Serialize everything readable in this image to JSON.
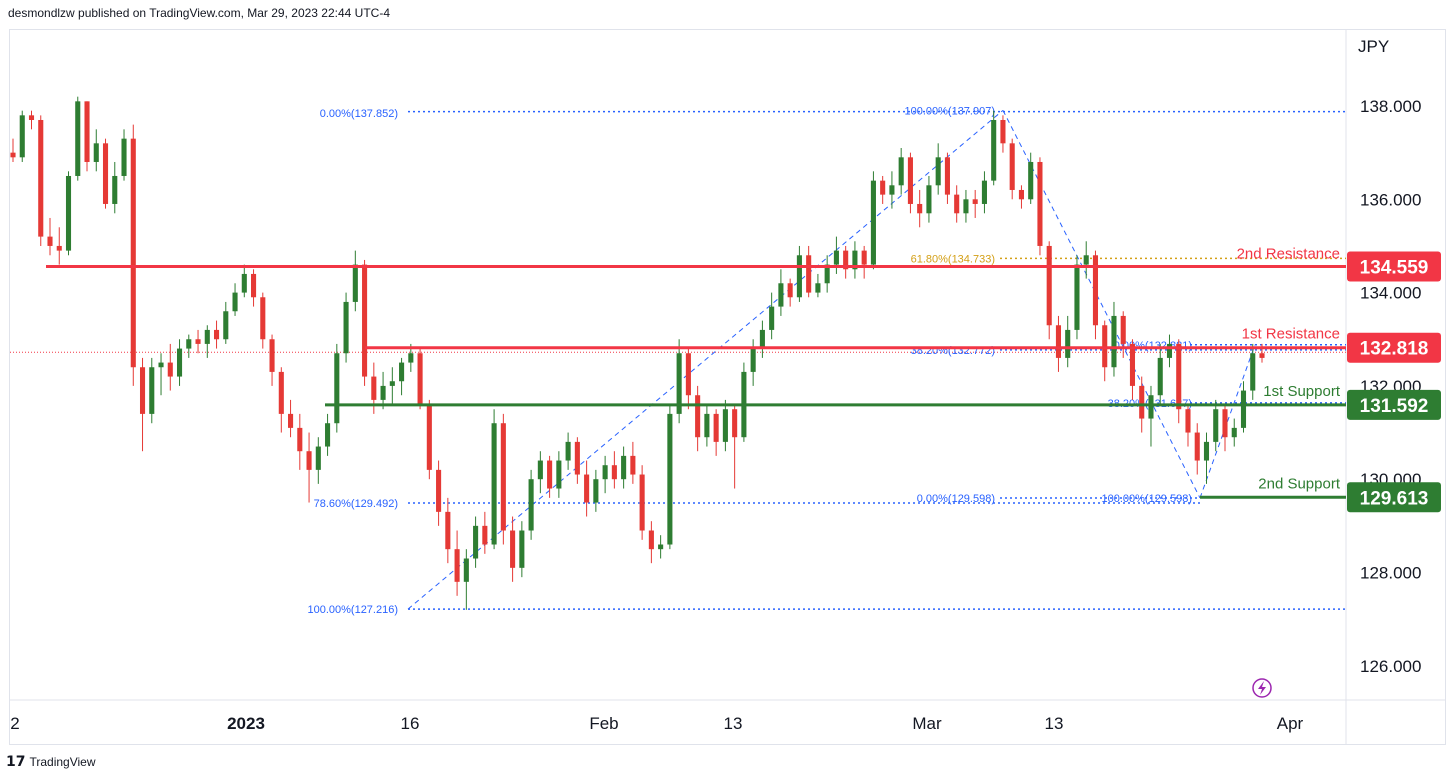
{
  "header": {
    "text": "desmondlzw published on TradingView.com, Mar 29, 2023 22:44 UTC-4"
  },
  "footer": {
    "brand": "TradingView"
  },
  "chart_data": {
    "type": "candlestick",
    "currency": "JPY",
    "price_ticks": [
      "138.000",
      "136.000",
      "134.000",
      "132.000",
      "130.000",
      "128.000",
      "126.000"
    ],
    "date_ticks": [
      "2",
      "2023",
      "16",
      "Feb",
      "13",
      "Mar",
      "13",
      "Apr"
    ],
    "levels": [
      {
        "name": "2nd Resistance",
        "value": 134.559,
        "label": "134.559",
        "color": "#f23645"
      },
      {
        "name": "1st Resistance",
        "value": 132.818,
        "label": "132.818",
        "color": "#f23645"
      },
      {
        "name": "1st Support",
        "value": 131.592,
        "label": "131.592",
        "color": "#2e7d32"
      },
      {
        "name": "2nd Support",
        "value": 129.613,
        "label": "129.613",
        "color": "#2e7d32"
      }
    ],
    "fib_labels": [
      {
        "text": "0.00%(137.852)",
        "color": "#2962ff"
      },
      {
        "text": "78.60%(129.492)",
        "color": "#2962ff"
      },
      {
        "text": "100.00%(127.216)",
        "color": "#2962ff"
      },
      {
        "text": "100.00%(137.907)",
        "color": "#2962ff"
      },
      {
        "text": "61.80%(134.733)",
        "color": "#d4a017"
      },
      {
        "text": "38.20%(132.772)",
        "color": "#2962ff"
      },
      {
        "text": "0.00%(129.598)",
        "color": "#2962ff"
      },
      {
        "text": "0.00%(132.881)",
        "color": "#2962ff"
      },
      {
        "text": "38.20%(131.637)",
        "color": "#2962ff"
      },
      {
        "text": "100.00%(129.598)",
        "color": "#2962ff"
      }
    ],
    "candles": [
      [
        137.0,
        137.3,
        136.8,
        136.9
      ],
      [
        136.9,
        137.9,
        136.8,
        137.8
      ],
      [
        137.8,
        137.9,
        137.5,
        137.7
      ],
      [
        137.7,
        137.8,
        135.0,
        135.2
      ],
      [
        135.2,
        135.6,
        134.8,
        135.0
      ],
      [
        135.0,
        135.4,
        134.6,
        134.9
      ],
      [
        134.9,
        136.6,
        134.8,
        136.5
      ],
      [
        136.5,
        138.2,
        136.4,
        138.1
      ],
      [
        138.1,
        138.1,
        136.6,
        136.8
      ],
      [
        136.8,
        137.5,
        136.6,
        137.2
      ],
      [
        137.2,
        137.3,
        135.8,
        135.9
      ],
      [
        135.9,
        136.8,
        135.7,
        136.5
      ],
      [
        136.5,
        137.5,
        136.4,
        137.3
      ],
      [
        137.3,
        137.6,
        132.0,
        132.4
      ],
      [
        132.4,
        132.6,
        130.6,
        131.4
      ],
      [
        131.4,
        132.6,
        131.2,
        132.4
      ],
      [
        132.4,
        132.7,
        131.8,
        132.5
      ],
      [
        132.5,
        132.9,
        131.9,
        132.2
      ],
      [
        132.2,
        133.0,
        132.0,
        132.8
      ],
      [
        132.8,
        133.1,
        132.6,
        133.0
      ],
      [
        133.0,
        133.2,
        132.7,
        132.9
      ],
      [
        132.9,
        133.3,
        132.6,
        133.2
      ],
      [
        133.2,
        133.4,
        132.8,
        133.0
      ],
      [
        133.0,
        133.8,
        132.9,
        133.6
      ],
      [
        133.6,
        134.2,
        133.5,
        134.0
      ],
      [
        134.0,
        134.6,
        133.9,
        134.4
      ],
      [
        134.4,
        134.5,
        133.7,
        133.9
      ],
      [
        133.9,
        134.0,
        132.8,
        133.0
      ],
      [
        133.0,
        133.1,
        132.0,
        132.3
      ],
      [
        132.3,
        132.4,
        131.0,
        131.4
      ],
      [
        131.4,
        131.7,
        130.9,
        131.1
      ],
      [
        131.1,
        131.4,
        130.2,
        130.6
      ],
      [
        130.6,
        131.0,
        129.5,
        130.2
      ],
      [
        130.2,
        130.9,
        129.9,
        130.7
      ],
      [
        130.7,
        131.4,
        130.5,
        131.2
      ],
      [
        131.2,
        132.9,
        131.0,
        132.7
      ],
      [
        132.7,
        134.0,
        132.5,
        133.8
      ],
      [
        133.8,
        134.9,
        133.6,
        134.6
      ],
      [
        134.6,
        134.7,
        132.0,
        132.2
      ],
      [
        132.2,
        132.5,
        131.4,
        131.7
      ],
      [
        131.7,
        132.3,
        131.5,
        132.0
      ],
      [
        132.0,
        132.4,
        131.6,
        132.1
      ],
      [
        132.1,
        132.6,
        131.8,
        132.5
      ],
      [
        132.5,
        132.9,
        132.3,
        132.7
      ],
      [
        132.7,
        132.8,
        131.5,
        131.6
      ],
      [
        131.6,
        131.7,
        130.0,
        130.2
      ],
      [
        130.2,
        130.4,
        129.0,
        129.3
      ],
      [
        129.3,
        129.6,
        128.2,
        128.5
      ],
      [
        128.5,
        128.9,
        127.5,
        127.8
      ],
      [
        127.8,
        128.5,
        127.2,
        128.3
      ],
      [
        128.3,
        129.2,
        128.1,
        129.0
      ],
      [
        129.0,
        129.3,
        128.4,
        128.6
      ],
      [
        128.6,
        131.5,
        128.5,
        131.2
      ],
      [
        131.2,
        131.4,
        128.6,
        128.9
      ],
      [
        128.9,
        129.2,
        127.8,
        128.1
      ],
      [
        128.1,
        129.1,
        127.9,
        128.9
      ],
      [
        128.9,
        130.2,
        128.7,
        130.0
      ],
      [
        130.0,
        130.6,
        129.7,
        130.4
      ],
      [
        130.4,
        130.5,
        129.6,
        129.8
      ],
      [
        129.8,
        130.6,
        129.6,
        130.4
      ],
      [
        130.4,
        131.0,
        130.2,
        130.8
      ],
      [
        130.8,
        130.9,
        129.9,
        130.1
      ],
      [
        130.1,
        130.4,
        129.2,
        129.5
      ],
      [
        129.5,
        130.2,
        129.3,
        130.0
      ],
      [
        130.0,
        130.5,
        129.7,
        130.3
      ],
      [
        130.3,
        130.6,
        129.8,
        130.0
      ],
      [
        130.0,
        130.7,
        129.8,
        130.5
      ],
      [
        130.5,
        130.8,
        129.9,
        130.1
      ],
      [
        130.1,
        130.3,
        128.7,
        128.9
      ],
      [
        128.9,
        129.1,
        128.2,
        128.5
      ],
      [
        128.5,
        128.8,
        128.3,
        128.6
      ],
      [
        128.6,
        131.6,
        128.5,
        131.4
      ],
      [
        131.4,
        133.0,
        131.2,
        132.7
      ],
      [
        132.7,
        132.8,
        131.5,
        131.8
      ],
      [
        131.8,
        132.0,
        130.6,
        130.9
      ],
      [
        130.9,
        131.6,
        130.7,
        131.4
      ],
      [
        131.4,
        131.5,
        130.5,
        130.8
      ],
      [
        130.8,
        131.7,
        130.6,
        131.5
      ],
      [
        131.5,
        131.6,
        129.8,
        130.9
      ],
      [
        130.9,
        132.5,
        130.8,
        132.3
      ],
      [
        132.3,
        133.0,
        132.0,
        132.8
      ],
      [
        132.8,
        133.4,
        132.6,
        133.2
      ],
      [
        133.2,
        134.0,
        133.0,
        133.7
      ],
      [
        133.7,
        134.5,
        133.5,
        134.2
      ],
      [
        134.2,
        134.3,
        133.7,
        133.9
      ],
      [
        133.9,
        135.0,
        133.8,
        134.8
      ],
      [
        134.8,
        135.0,
        133.9,
        134.0
      ],
      [
        134.0,
        134.4,
        133.9,
        134.2
      ],
      [
        134.2,
        134.8,
        134.0,
        134.6
      ],
      [
        134.6,
        135.2,
        134.4,
        134.9
      ],
      [
        134.9,
        135.0,
        134.3,
        134.5
      ],
      [
        134.5,
        135.1,
        134.3,
        134.9
      ],
      [
        134.9,
        135.0,
        134.3,
        134.6
      ],
      [
        134.6,
        136.6,
        134.5,
        136.4
      ],
      [
        136.4,
        136.5,
        135.9,
        136.1
      ],
      [
        136.1,
        136.6,
        135.8,
        136.3
      ],
      [
        136.3,
        137.1,
        136.1,
        136.9
      ],
      [
        136.9,
        137.0,
        135.7,
        135.9
      ],
      [
        135.9,
        136.2,
        135.4,
        135.7
      ],
      [
        135.7,
        136.5,
        135.5,
        136.3
      ],
      [
        136.3,
        137.2,
        136.1,
        136.9
      ],
      [
        136.9,
        137.0,
        135.9,
        136.1
      ],
      [
        136.1,
        136.3,
        135.5,
        135.7
      ],
      [
        135.7,
        136.2,
        135.5,
        136.0
      ],
      [
        136.0,
        136.2,
        135.6,
        135.9
      ],
      [
        135.9,
        136.6,
        135.7,
        136.4
      ],
      [
        136.4,
        137.9,
        136.3,
        137.7
      ],
      [
        137.7,
        137.8,
        137.0,
        137.2
      ],
      [
        137.2,
        137.3,
        136.0,
        136.2
      ],
      [
        136.2,
        136.3,
        135.8,
        136.0
      ],
      [
        136.0,
        137.0,
        135.9,
        136.8
      ],
      [
        136.8,
        136.9,
        134.8,
        135.0
      ],
      [
        135.0,
        135.1,
        133.0,
        133.3
      ],
      [
        133.3,
        133.5,
        132.3,
        132.6
      ],
      [
        132.6,
        133.5,
        132.4,
        133.2
      ],
      [
        133.2,
        134.8,
        133.0,
        134.6
      ],
      [
        134.6,
        135.1,
        134.3,
        134.8
      ],
      [
        134.8,
        134.9,
        133.0,
        133.3
      ],
      [
        133.3,
        133.4,
        132.1,
        132.4
      ],
      [
        132.4,
        133.8,
        132.2,
        133.5
      ],
      [
        133.5,
        133.6,
        132.6,
        132.9
      ],
      [
        132.9,
        133.0,
        131.7,
        132.0
      ],
      [
        132.0,
        132.2,
        131.0,
        131.3
      ],
      [
        131.3,
        132.0,
        130.7,
        131.8
      ],
      [
        131.8,
        132.9,
        131.6,
        132.6
      ],
      [
        132.6,
        133.1,
        132.4,
        132.9
      ],
      [
        132.9,
        133.0,
        131.2,
        131.5
      ],
      [
        131.5,
        131.6,
        130.7,
        131.0
      ],
      [
        131.0,
        131.2,
        130.1,
        130.4
      ],
      [
        130.4,
        131.0,
        129.9,
        130.8
      ],
      [
        130.8,
        131.7,
        130.6,
        131.5
      ],
      [
        131.5,
        131.6,
        130.6,
        130.9
      ],
      [
        130.9,
        131.3,
        130.7,
        131.1
      ],
      [
        131.1,
        132.1,
        131.0,
        131.9
      ],
      [
        131.9,
        132.9,
        131.7,
        132.7
      ],
      [
        132.7,
        132.9,
        132.5,
        132.6
      ]
    ]
  }
}
